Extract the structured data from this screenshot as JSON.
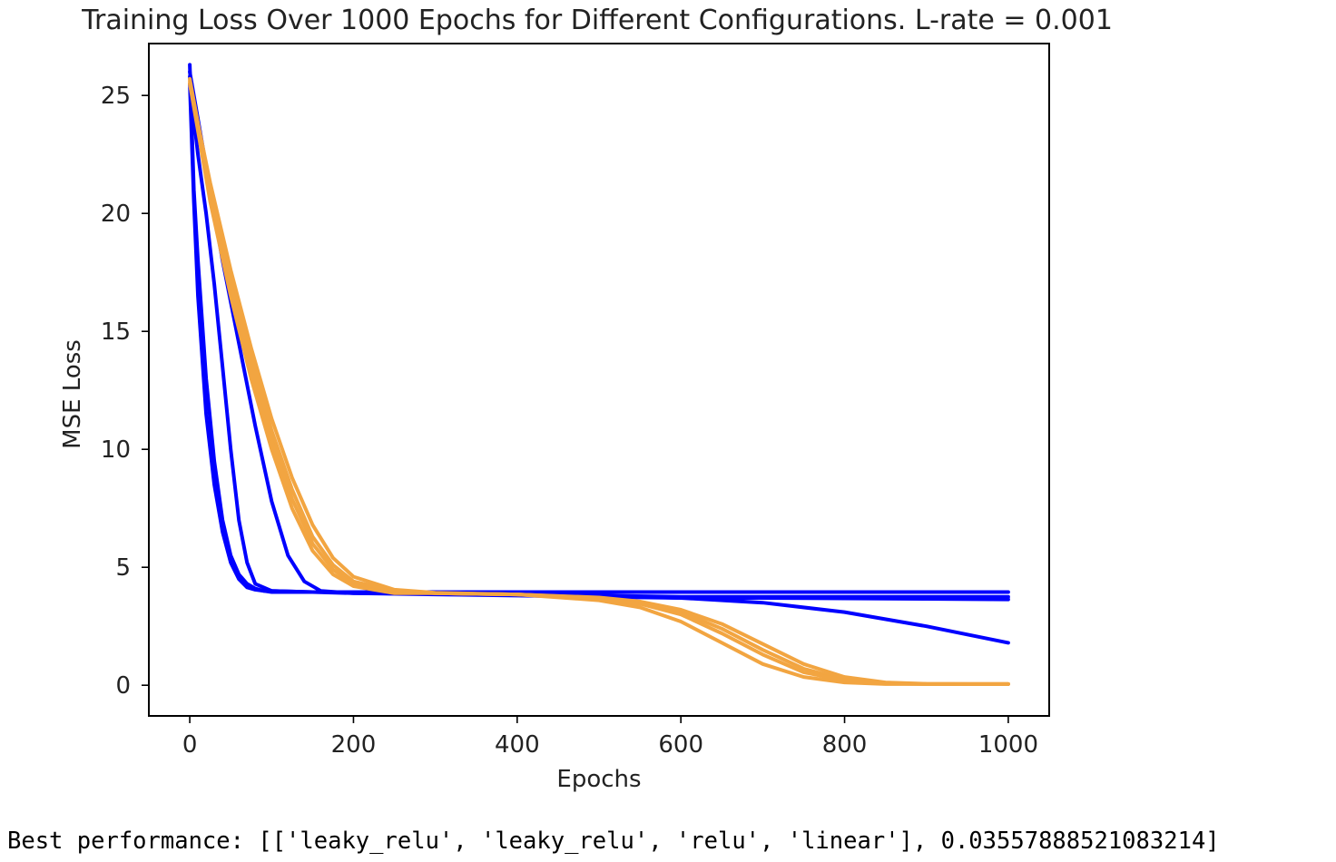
{
  "chart_data": {
    "type": "line",
    "title": "Training Loss Over 1000 Epochs for Different Configurations. L-rate = 0.001",
    "xlabel": "Epochs",
    "ylabel": "MSE Loss",
    "xlim": [
      -50,
      1050
    ],
    "ylim": [
      -1.3,
      27.2
    ],
    "xticks": [
      0,
      200,
      400,
      600,
      800,
      1000
    ],
    "yticks": [
      0,
      5,
      10,
      15,
      20,
      25
    ],
    "grid": false,
    "colors": {
      "blue": "#0000ff",
      "orange": "#f2a541"
    },
    "series": [
      {
        "color": "#0000ff",
        "x": [
          0,
          5,
          10,
          20,
          30,
          40,
          50,
          60,
          70,
          80,
          90,
          100,
          120,
          150,
          200,
          300,
          400,
          500,
          600,
          700,
          800,
          900,
          1000
        ],
        "y": [
          26.3,
          21.0,
          18.0,
          13.0,
          9.5,
          7.0,
          5.5,
          4.7,
          4.3,
          4.1,
          4.0,
          3.95,
          3.95,
          3.95,
          3.95,
          3.95,
          3.95,
          3.95,
          3.95,
          3.95,
          3.95,
          3.95,
          3.95
        ]
      },
      {
        "color": "#0000ff",
        "x": [
          0,
          5,
          10,
          20,
          30,
          40,
          50,
          60,
          70,
          80,
          90,
          100,
          150,
          200,
          300,
          400,
          500,
          600,
          700,
          800,
          900,
          1000
        ],
        "y": [
          25.5,
          20.5,
          16.5,
          11.5,
          8.5,
          6.5,
          5.2,
          4.5,
          4.15,
          4.05,
          4.0,
          4.0,
          3.95,
          3.9,
          3.85,
          3.8,
          3.75,
          3.7,
          3.7,
          3.68,
          3.66,
          3.64
        ]
      },
      {
        "color": "#0000ff",
        "x": [
          0,
          5,
          10,
          20,
          30,
          40,
          50,
          60,
          70,
          80,
          100,
          150,
          200,
          300,
          400,
          500,
          600,
          700,
          800,
          900,
          1000
        ],
        "y": [
          25.8,
          24.0,
          22.5,
          20.0,
          17.0,
          13.5,
          10.0,
          7.0,
          5.2,
          4.3,
          4.0,
          3.95,
          3.95,
          3.9,
          3.85,
          3.8,
          3.7,
          3.5,
          3.1,
          2.5,
          1.8
        ]
      },
      {
        "color": "#0000ff",
        "x": [
          0,
          10,
          20,
          30,
          40,
          60,
          80,
          100,
          120,
          140,
          160,
          200,
          300,
          400,
          500,
          600,
          700,
          800,
          900,
          1000
        ],
        "y": [
          26.0,
          24.0,
          22.0,
          20.0,
          18.0,
          14.5,
          11.0,
          7.8,
          5.5,
          4.4,
          4.0,
          3.9,
          3.9,
          3.85,
          3.8,
          3.75,
          3.75,
          3.75,
          3.75,
          3.75
        ]
      },
      {
        "color": "#f2a541",
        "x": [
          0,
          25,
          50,
          75,
          100,
          125,
          150,
          175,
          200,
          250,
          300,
          400,
          500,
          550,
          600,
          650,
          700,
          750,
          800,
          850,
          900,
          950,
          1000
        ],
        "y": [
          25.5,
          20.5,
          16.5,
          13.0,
          10.0,
          7.5,
          5.7,
          4.7,
          4.2,
          3.9,
          3.9,
          3.85,
          3.6,
          3.3,
          2.7,
          1.8,
          0.9,
          0.35,
          0.12,
          0.05,
          0.05,
          0.05,
          0.05
        ]
      },
      {
        "color": "#f2a541",
        "x": [
          0,
          25,
          50,
          75,
          100,
          125,
          150,
          175,
          200,
          250,
          300,
          400,
          500,
          550,
          600,
          650,
          700,
          750,
          800,
          850,
          900,
          950,
          1000
        ],
        "y": [
          25.6,
          20.8,
          16.9,
          13.4,
          10.4,
          7.9,
          6.0,
          4.9,
          4.3,
          3.95,
          3.9,
          3.85,
          3.7,
          3.5,
          3.1,
          2.4,
          1.5,
          0.7,
          0.25,
          0.1,
          0.05,
          0.05,
          0.05
        ]
      },
      {
        "color": "#f2a541",
        "x": [
          0,
          25,
          50,
          75,
          100,
          125,
          150,
          175,
          200,
          250,
          300,
          400,
          500,
          550,
          600,
          650,
          700,
          750,
          800,
          850,
          900,
          950,
          1000
        ],
        "y": [
          25.7,
          21.0,
          17.2,
          13.8,
          10.8,
          8.3,
          6.3,
          5.1,
          4.4,
          4.0,
          3.9,
          3.85,
          3.72,
          3.55,
          3.2,
          2.6,
          1.75,
          0.9,
          0.35,
          0.12,
          0.06,
          0.05,
          0.05
        ]
      },
      {
        "color": "#f2a541",
        "x": [
          0,
          25,
          50,
          75,
          100,
          125,
          150,
          175,
          200,
          250,
          300,
          400,
          500,
          550,
          600,
          650,
          700,
          750,
          800,
          850,
          900,
          950,
          1000
        ],
        "y": [
          25.5,
          21.3,
          17.6,
          14.3,
          11.3,
          8.8,
          6.8,
          5.4,
          4.6,
          4.05,
          3.92,
          3.85,
          3.68,
          3.45,
          3.0,
          2.2,
          1.3,
          0.55,
          0.2,
          0.08,
          0.05,
          0.05,
          0.05
        ]
      }
    ]
  },
  "output": {
    "text": "Best performance: [['leaky_relu', 'leaky_relu', 'relu', 'linear'], 0.03557888521083214]"
  }
}
